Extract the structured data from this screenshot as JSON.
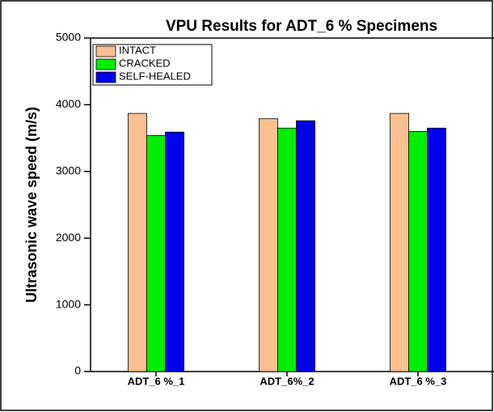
{
  "chart_data": {
    "type": "bar",
    "title": "VPU Results for ADT_6 % Specimens",
    "y_label": "Ultrasonic wave speed (m/s)",
    "categories": [
      "ADT_6 %_1",
      "ADT_6%_2",
      "ADT_6 %_3"
    ],
    "series": [
      {
        "name": "INTACT",
        "color": "#fac090",
        "values": [
          3870,
          3790,
          3870
        ]
      },
      {
        "name": "CRACKED",
        "color": "#00ee00",
        "values": [
          3540,
          3650,
          3600
        ]
      },
      {
        "name": "SELF-HEALED",
        "color": "#0000ee",
        "values": [
          3590,
          3760,
          3650
        ]
      }
    ],
    "ylim": [
      0,
      5000
    ],
    "yticks": [
      0,
      1000,
      2000,
      3000,
      4000,
      5000
    ],
    "legend": "upper left"
  }
}
